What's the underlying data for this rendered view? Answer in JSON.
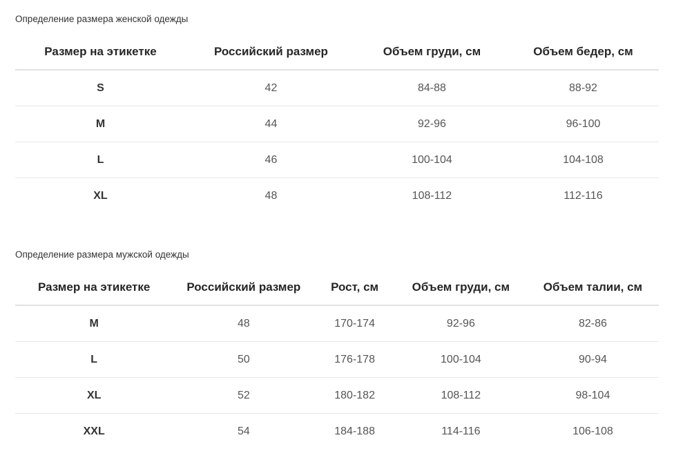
{
  "colors": {
    "page_background": "#ffffff",
    "title_text": "#333333",
    "header_text": "#262626",
    "body_text": "#555555",
    "row_border": "#e7e7e7",
    "header_border": "#e2e2e2"
  },
  "tables": [
    {
      "title": "Определение размера женской одежды",
      "headers": [
        "Размер на этикетке",
        "Российский размер",
        "Объем груди, см",
        "Объем бедер, см"
      ],
      "rows": [
        [
          "S",
          "42",
          "84-88",
          "88-92"
        ],
        [
          "M",
          "44",
          "92-96",
          "96-100"
        ],
        [
          "L",
          "46",
          "100-104",
          "104-108"
        ],
        [
          "XL",
          "48",
          "108-112",
          "112-116"
        ]
      ]
    },
    {
      "title": "Определение размера мужской одежды",
      "headers": [
        "Размер на этикетке",
        "Российский размер",
        "Рост, см",
        "Объем груди, см",
        "Объем талии, см"
      ],
      "rows": [
        [
          "M",
          "48",
          "170-174",
          "92-96",
          "82-86"
        ],
        [
          "L",
          "50",
          "176-178",
          "100-104",
          "90-94"
        ],
        [
          "XL",
          "52",
          "180-182",
          "108-112",
          "98-104"
        ],
        [
          "XXL",
          "54",
          "184-188",
          "114-116",
          "106-108"
        ]
      ]
    }
  ]
}
